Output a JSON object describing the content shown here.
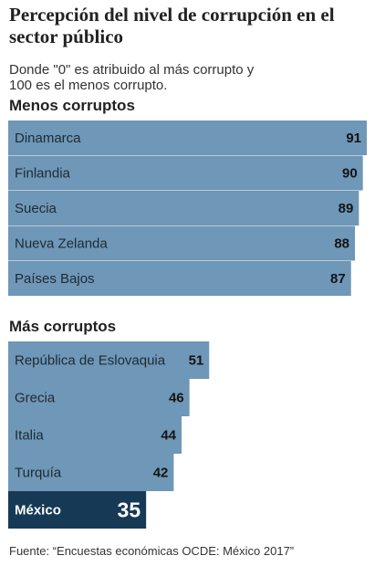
{
  "title": "Percepción del nivel de corrupción en el sector público",
  "subtitle": "Donde \"0\" es atribuido al más corrupto y 100 es el menos corrupto.",
  "source": "Fuente: “Encuestas económicas OCDE: México 2017”",
  "colors": {
    "bar": "#6f97b7",
    "highlight": "#163a55",
    "background": "#ffffff"
  },
  "chart_data": [
    {
      "type": "bar",
      "orientation": "horizontal",
      "title": "Menos corruptos",
      "categories": [
        "Dinamarca",
        "Finlandia",
        "Suecia",
        "Nueva Zelanda",
        "Países Bajos"
      ],
      "values": [
        91,
        90,
        89,
        88,
        87
      ]
    },
    {
      "type": "bar",
      "orientation": "horizontal",
      "title": "Más corruptos",
      "categories": [
        "República de Eslovaquia",
        "Grecia",
        "Italia",
        "Turquía",
        "México"
      ],
      "values": [
        51,
        46,
        44,
        42,
        35
      ],
      "highlight": "México"
    }
  ]
}
